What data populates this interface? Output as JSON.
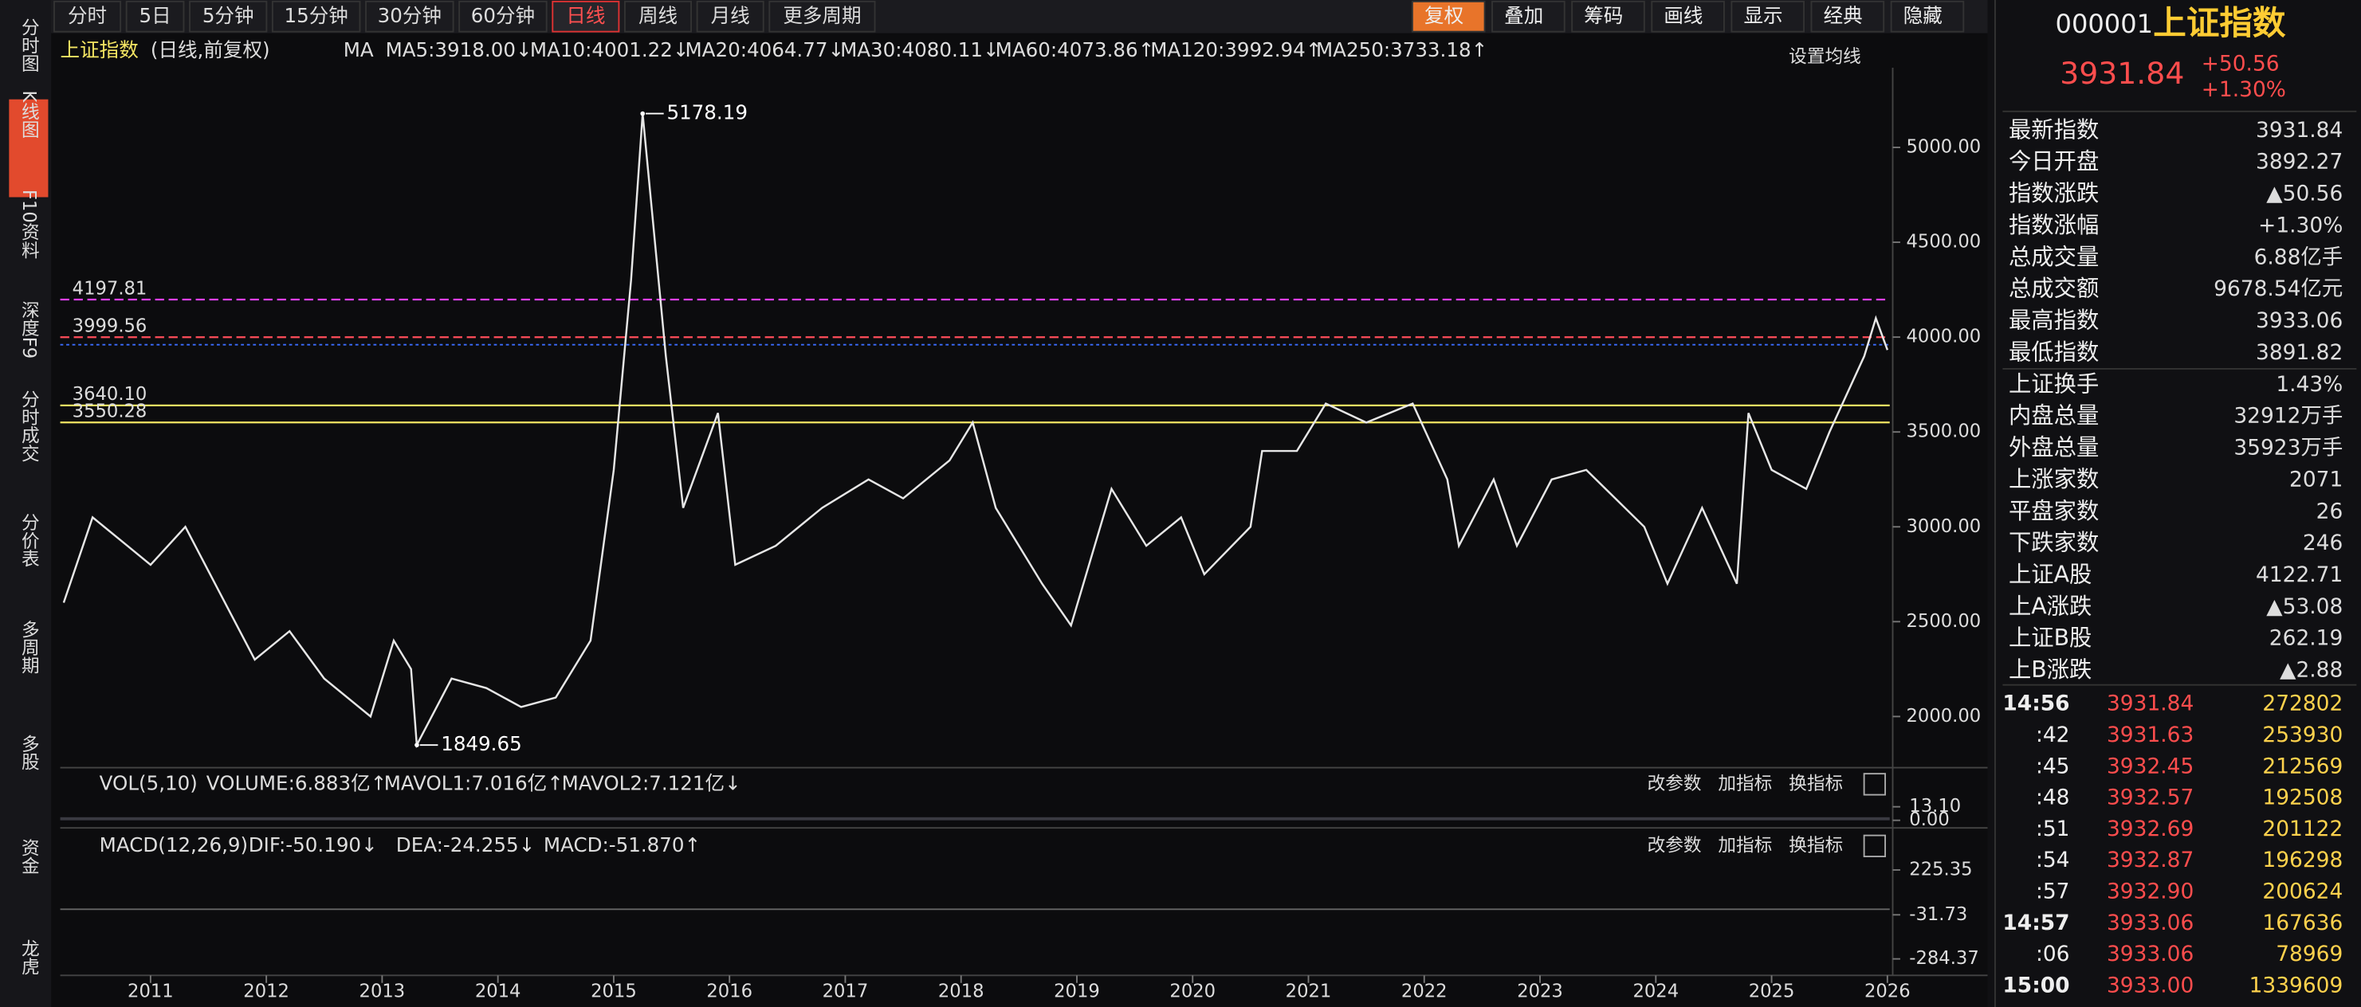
{
  "toolbar": {
    "periods": [
      "分时",
      "5日",
      "5分钟",
      "15分钟",
      "30分钟",
      "60分钟",
      "日线",
      "周线",
      "月线",
      "更多周期"
    ],
    "active": "日线",
    "tools": [
      "复权",
      "叠加",
      "筹码",
      "画线",
      "显示",
      "经典",
      "隐藏"
    ]
  },
  "sidebar": [
    "分时图",
    "K线图",
    "F10资料",
    "深度F9",
    "分时成交",
    "分价表",
    "多周期",
    "多股",
    "资金",
    "龙虎"
  ],
  "chart_header": {
    "name": "上证指数",
    "mode": "(日线,前复权)",
    "ma_label": "MA",
    "settings": "设置均线",
    "ma": [
      {
        "text": "MA5:3918.00↓",
        "color": "#ffffff"
      },
      {
        "text": "MA10:4001.22↓",
        "color": "#f5e663"
      },
      {
        "text": "MA20:4064.77↓",
        "color": "#e040fb"
      },
      {
        "text": "MA30:4080.11↓",
        "color": "#7cf06a"
      },
      {
        "text": "MA60:4073.86↑",
        "color": "#ffffff"
      },
      {
        "text": "MA120:3992.94↑",
        "color": "#5bc8f5"
      },
      {
        "text": "MA250:3733.18↑",
        "color": "#f5e663"
      }
    ]
  },
  "price_chart": {
    "type": "line",
    "color": "#e6e6e6",
    "x": [
      2010.25,
      2010.5,
      2010.8,
      2011.0,
      2011.3,
      2011.6,
      2011.9,
      2012.2,
      2012.5,
      2012.9,
      2013.1,
      2013.25,
      2013.3,
      2013.6,
      2013.9,
      2014.2,
      2014.5,
      2014.8,
      2015.0,
      2015.15,
      2015.25,
      2015.45,
      2015.6,
      2015.9,
      2016.05,
      2016.4,
      2016.8,
      2017.2,
      2017.5,
      2017.9,
      2018.1,
      2018.3,
      2018.7,
      2018.95,
      2019.3,
      2019.6,
      2019.9,
      2020.1,
      2020.5,
      2020.6,
      2020.9,
      2021.15,
      2021.5,
      2021.9,
      2022.2,
      2022.3,
      2022.6,
      2022.8,
      2023.1,
      2023.4,
      2023.9,
      2024.1,
      2024.4,
      2024.7,
      2024.8,
      2025.0,
      2025.3,
      2025.5,
      2025.8,
      2025.9,
      2026.0
    ],
    "values": [
      2600,
      3050,
      2900,
      2800,
      3000,
      2650,
      2300,
      2450,
      2200,
      2000,
      2400,
      2250,
      1850,
      2200,
      2150,
      2050,
      2100,
      2400,
      3300,
      4300,
      5178,
      3900,
      3100,
      3600,
      2800,
      2900,
      3100,
      3250,
      3150,
      3350,
      3550,
      3100,
      2700,
      2480,
      3200,
      2900,
      3050,
      2750,
      3000,
      3400,
      3400,
      3650,
      3550,
      3650,
      3250,
      2900,
      3250,
      2900,
      3250,
      3300,
      3000,
      2700,
      3100,
      2700,
      3600,
      3300,
      3200,
      3500,
      3900,
      4100,
      3932
    ],
    "xlim": [
      2010.22,
      2026.02
    ],
    "ylim": [
      1770,
      5420
    ],
    "xticks": [
      2011,
      2012,
      2013,
      2014,
      2015,
      2016,
      2017,
      2018,
      2019,
      2020,
      2021,
      2022,
      2023,
      2024,
      2025,
      2026
    ],
    "yticks": [
      {
        "value": 2000,
        "label": "2000.00"
      },
      {
        "value": 2500,
        "label": "2500.00"
      },
      {
        "value": 3000,
        "label": "3000.00"
      },
      {
        "value": 3500,
        "label": "3500.00"
      },
      {
        "value": 4000,
        "label": "4000.00"
      },
      {
        "value": 4500,
        "label": "4500.00"
      },
      {
        "value": 5000,
        "label": "5000.00"
      }
    ],
    "levels": [
      {
        "value": 4197.81,
        "label": "4197.81",
        "color": "#e040fb"
      },
      {
        "value": 3999.56,
        "label": "3999.56",
        "color": "#ff4d5a"
      },
      {
        "value": 3640.1,
        "label": "3640.10",
        "color": "#f5e663"
      },
      {
        "value": 3550.28,
        "label": "3550.28",
        "color": "#f5e663"
      }
    ],
    "annotations": [
      {
        "x": 2015.25,
        "value": 5178.19,
        "label": "5178.19"
      },
      {
        "x": 2013.3,
        "value": 1849.65,
        "label": "1849.65"
      }
    ]
  },
  "volume_panel": {
    "title": "VOL(5,10)",
    "items": [
      {
        "text": "VOLUME:6.883亿↑",
        "color": "#ffffff"
      },
      {
        "text": "MAVOL1:7.016亿↑",
        "color": "#f5e663"
      },
      {
        "text": "MAVOL2:7.121亿↓",
        "color": "#e040fb"
      }
    ],
    "ylim": [
      -4.4,
      24.7
    ],
    "yticks": [
      {
        "value": 13.1,
        "label": "13.10"
      },
      {
        "value": 0,
        "label": "0.00"
      }
    ]
  },
  "macd_panel": {
    "title": "MACD(12,26,9)",
    "items": [
      {
        "text": "DIF:-50.190↓",
        "color": "#ffffff"
      },
      {
        "text": "DEA:-24.255↓",
        "color": "#f5e663"
      },
      {
        "text": "MACD:-51.870↑",
        "color": "#e040fb"
      }
    ],
    "ylim": [
      -353,
      294
    ],
    "yticks": [
      225.35,
      -31.73,
      -284.37
    ]
  },
  "panel_buttons": [
    "改参数",
    "加指标",
    "换指标"
  ],
  "quote": {
    "code": "000001",
    "name": "上证指数",
    "price": "3931.84",
    "change": "+50.56",
    "pct": "+1.30%",
    "rows": [
      [
        "最新指数",
        "3931.84",
        "#ff4d4d"
      ],
      [
        "今日开盘",
        "3892.27",
        "#ff4d4d"
      ],
      [
        "指数涨跌",
        "▲50.56",
        "#ff4d4d"
      ],
      [
        "指数涨幅",
        "+1.30%",
        "#ff4d4d"
      ],
      [
        "总成交量",
        "6.88亿手",
        "#ffffff"
      ],
      [
        "总成交额",
        "9678.54亿元",
        "#5bd0f5"
      ],
      [
        "最高指数",
        "3933.06",
        "#ff4d4d"
      ],
      [
        "最低指数",
        "3891.82",
        "#ff4d4d"
      ],
      [
        "上证换手",
        "1.43%",
        "#ffffff"
      ],
      [
        "内盘总量",
        "32912万手",
        "#39e05a"
      ],
      [
        "外盘总量",
        "35923万手",
        "#ff4d4d"
      ],
      [
        "上涨家数",
        "2071",
        "#ff4d4d"
      ],
      [
        "平盘家数",
        "26",
        "#ffffff"
      ],
      [
        "下跌家数",
        "246",
        "#39e05a"
      ],
      [
        "上证A股",
        "4122.71",
        "#ff4d4d"
      ],
      [
        "上A涨跌",
        "▲53.08",
        "#ff4d4d"
      ],
      [
        "上证B股",
        "262.19",
        "#ff4d4d"
      ],
      [
        "上B涨跌",
        "▲2.88",
        "#ff4d4d"
      ]
    ],
    "ticks": [
      [
        "14:56",
        "3931.84",
        "272802"
      ],
      [
        ":42",
        "3931.63",
        "253930"
      ],
      [
        ":45",
        "3932.45",
        "212569"
      ],
      [
        ":48",
        "3932.57",
        "192508"
      ],
      [
        ":51",
        "3932.69",
        "201122"
      ],
      [
        ":54",
        "3932.87",
        "196298"
      ],
      [
        ":57",
        "3932.90",
        "200624"
      ],
      [
        "14:57",
        "3933.06",
        "167636"
      ],
      [
        ":06",
        "3933.06",
        "78969"
      ],
      [
        "15:00",
        "3933.00",
        "1339609"
      ]
    ]
  }
}
